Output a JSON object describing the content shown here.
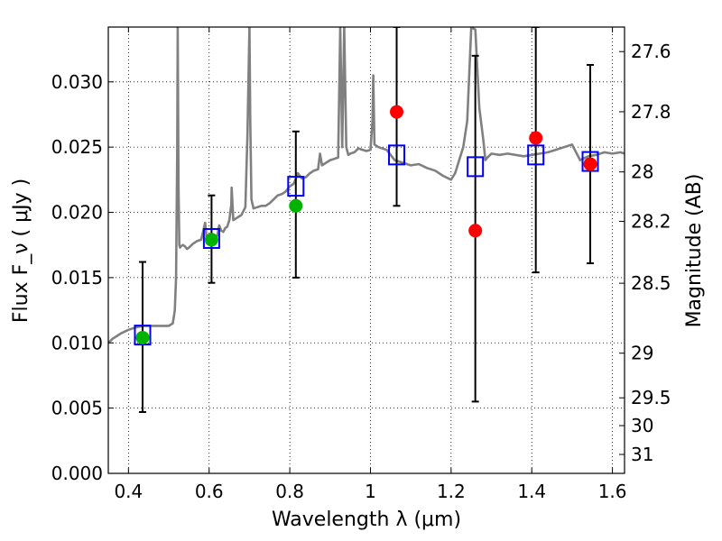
{
  "chart_data": {
    "type": "line",
    "xlabel": "Wavelength  λ (μm)",
    "ylabel_left": "Flux  F_ν  ( μJy )",
    "ylabel_right": "Magnitude (AB)",
    "xlim": [
      0.35,
      1.63
    ],
    "ylim": [
      0.0,
      0.0342
    ],
    "x_ticks": [
      0.4,
      0.6,
      0.8,
      1.0,
      1.2,
      1.4,
      1.6
    ],
    "x_tick_labels": [
      "0.4",
      "0.6",
      "0.8",
      "1",
      "1.2",
      "1.4",
      "1.6"
    ],
    "y_ticks": [
      0.0,
      0.005,
      0.01,
      0.015,
      0.02,
      0.025,
      0.03
    ],
    "y_tick_labels": [
      "0.000",
      "0.005",
      "0.010",
      "0.015",
      "0.020",
      "0.025",
      "0.030"
    ],
    "right_ticks": [
      {
        "flux": 0.03232,
        "label": "27.6"
      },
      {
        "flux": 0.02771,
        "label": "27.8"
      },
      {
        "flux": 0.0231,
        "label": "28"
      },
      {
        "flux": 0.01931,
        "label": "28.2"
      },
      {
        "flux": 0.01457,
        "label": "28.5"
      },
      {
        "flux": 0.00921,
        "label": "29"
      },
      {
        "flux": 0.00579,
        "label": "29.5"
      },
      {
        "flux": 0.00366,
        "label": "30"
      },
      {
        "flux": 0.00145,
        "label": "31"
      }
    ],
    "grid": true,
    "series": [
      {
        "kind": "spectrum",
        "color": "#808080",
        "x": [
          0.35,
          0.36,
          0.38,
          0.4,
          0.42,
          0.44,
          0.46,
          0.48,
          0.5,
          0.51,
          0.515,
          0.518,
          0.521,
          0.522,
          0.524,
          0.526,
          0.528,
          0.53,
          0.535,
          0.54,
          0.545,
          0.55,
          0.56,
          0.57,
          0.58,
          0.585,
          0.59,
          0.595,
          0.6,
          0.61,
          0.62,
          0.625,
          0.63,
          0.635,
          0.64,
          0.645,
          0.65,
          0.655,
          0.656,
          0.66,
          0.67,
          0.68,
          0.69,
          0.695,
          0.7,
          0.702,
          0.705,
          0.71,
          0.72,
          0.73,
          0.74,
          0.75,
          0.76,
          0.77,
          0.78,
          0.79,
          0.8,
          0.81,
          0.82,
          0.83,
          0.84,
          0.85,
          0.86,
          0.87,
          0.875,
          0.88,
          0.89,
          0.9,
          0.91,
          0.92,
          0.925,
          0.93,
          0.935,
          0.94,
          0.945,
          0.95,
          0.96,
          0.97,
          0.98,
          0.99,
          1.0,
          1.005,
          1.007,
          1.01,
          1.02,
          1.04,
          1.06,
          1.08,
          1.1,
          1.12,
          1.14,
          1.16,
          1.18,
          1.2,
          1.21,
          1.22,
          1.23,
          1.24,
          1.25,
          1.26,
          1.27,
          1.28,
          1.285,
          1.29,
          1.3,
          1.32,
          1.34,
          1.36,
          1.38,
          1.4,
          1.42,
          1.44,
          1.46,
          1.48,
          1.5,
          1.52,
          1.54,
          1.56,
          1.58,
          1.6,
          1.62,
          1.63
        ],
        "y": [
          0.01,
          0.0103,
          0.0107,
          0.011,
          0.0112,
          0.0113,
          0.0113,
          0.0113,
          0.0113,
          0.0115,
          0.0125,
          0.015,
          0.025,
          0.0342,
          0.022,
          0.0175,
          0.0173,
          0.0174,
          0.0175,
          0.0174,
          0.0172,
          0.0173,
          0.0176,
          0.0178,
          0.0179,
          0.0185,
          0.0192,
          0.0176,
          0.0179,
          0.018,
          0.0182,
          0.019,
          0.0186,
          0.0185,
          0.0188,
          0.0189,
          0.0194,
          0.0206,
          0.0219,
          0.0194,
          0.0196,
          0.0198,
          0.0204,
          0.026,
          0.0342,
          0.027,
          0.021,
          0.0203,
          0.0204,
          0.0205,
          0.0205,
          0.0207,
          0.021,
          0.0213,
          0.0214,
          0.0216,
          0.022,
          0.0222,
          0.023,
          0.0226,
          0.0227,
          0.023,
          0.0232,
          0.0233,
          0.0245,
          0.0236,
          0.0238,
          0.024,
          0.0241,
          0.0242,
          0.0342,
          0.025,
          0.0342,
          0.025,
          0.0244,
          0.0245,
          0.0246,
          0.0249,
          0.0248,
          0.0247,
          0.0248,
          0.027,
          0.0305,
          0.0252,
          0.025,
          0.0248,
          0.024,
          0.0238,
          0.0236,
          0.0237,
          0.0234,
          0.0232,
          0.0228,
          0.0225,
          0.023,
          0.024,
          0.025,
          0.027,
          0.0342,
          0.034,
          0.028,
          0.0255,
          0.024,
          0.0242,
          0.0245,
          0.0244,
          0.0245,
          0.0244,
          0.0243,
          0.0244,
          0.0245,
          0.0246,
          0.0248,
          0.025,
          0.0252,
          0.024,
          0.0243,
          0.0244,
          0.0246,
          0.0245,
          0.0246,
          0.0245
        ]
      },
      {
        "kind": "model-photometry",
        "marker": "open-square",
        "color": "#0000ff",
        "x": [
          0.435,
          0.606,
          0.815,
          1.065,
          1.26,
          1.41,
          1.545
        ],
        "y": [
          0.0106,
          0.018,
          0.022,
          0.0244,
          0.0235,
          0.0244,
          0.0239
        ]
      },
      {
        "kind": "detections",
        "marker": "filled-circle",
        "color": "#00b300",
        "x": [
          0.435,
          0.606,
          0.815
        ],
        "y": [
          0.0104,
          0.0179,
          0.0205
        ]
      },
      {
        "kind": "upper-limits",
        "marker": "filled-circle",
        "color": "#ff0000",
        "x": [
          1.065,
          1.26,
          1.41,
          1.545
        ],
        "y": [
          0.0277,
          0.0186,
          0.0257,
          0.0237
        ]
      },
      {
        "kind": "error-bars",
        "color": "#000000",
        "x": [
          0.435,
          0.606,
          0.815,
          1.065,
          1.26,
          1.41,
          1.545
        ],
        "low": [
          0.0047,
          0.0146,
          0.015,
          0.0205,
          0.0055,
          0.0154,
          0.0161
        ],
        "high": [
          0.0162,
          0.0213,
          0.0262,
          0.0342,
          0.032,
          0.0342,
          0.0313
        ]
      }
    ]
  }
}
